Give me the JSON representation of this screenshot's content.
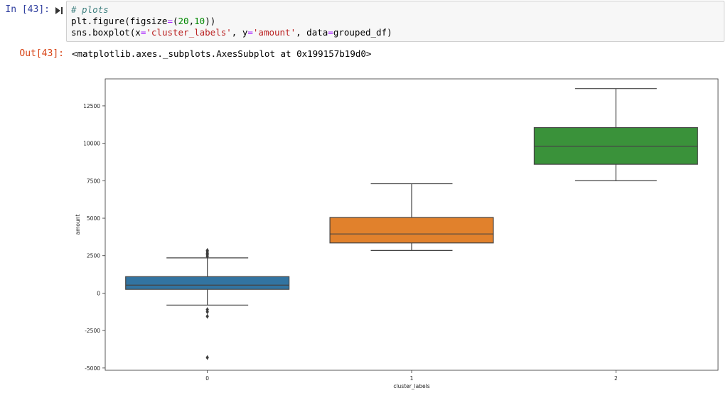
{
  "notebook": {
    "in_prompt": "In [43]:",
    "out_prompt": "Out[43]:",
    "code": {
      "line1_comment": "# plots",
      "line2": {
        "a": "plt.figure(figsize",
        "eq": "=",
        "b": "(",
        "n1": "20",
        "comma": ",",
        "n2": "10",
        "c": "))"
      },
      "line3": {
        "a": "sns.boxplot(x",
        "eq1": "=",
        "s1": "'cluster_labels'",
        "b": ", y",
        "eq2": "=",
        "s2": "'amount'",
        "c": ", data",
        "eq3": "=",
        "d": "grouped_df)"
      }
    },
    "output_text": "<matplotlib.axes._subplots.AxesSubplot at 0x199157b19d0>"
  },
  "chart_data": {
    "type": "boxplot",
    "xlabel": "cluster_labels",
    "ylabel": "amount",
    "categories": [
      "0",
      "1",
      "2"
    ],
    "ylim": [
      -5150,
      14300
    ],
    "yticks": [
      -5000,
      -2500,
      0,
      2500,
      5000,
      7500,
      10000,
      12500
    ],
    "grid": false,
    "boxes": [
      {
        "category": "0",
        "color": "#3274a1",
        "whisker_low": -800,
        "q1": 250,
        "median": 530,
        "q3": 1100,
        "whisker_high": 2350,
        "outliers": [
          2450,
          2550,
          2650,
          2750,
          2850,
          -1100,
          -1250,
          -1550,
          -4300
        ]
      },
      {
        "category": "1",
        "color": "#e1812c",
        "whisker_low": 2850,
        "q1": 3350,
        "median": 3950,
        "q3": 5050,
        "whisker_high": 7300,
        "outliers": []
      },
      {
        "category": "2",
        "color": "#3a923a",
        "whisker_low": 7500,
        "q1": 8600,
        "median": 9800,
        "q3": 11050,
        "whisker_high": 13650,
        "outliers": []
      }
    ]
  }
}
